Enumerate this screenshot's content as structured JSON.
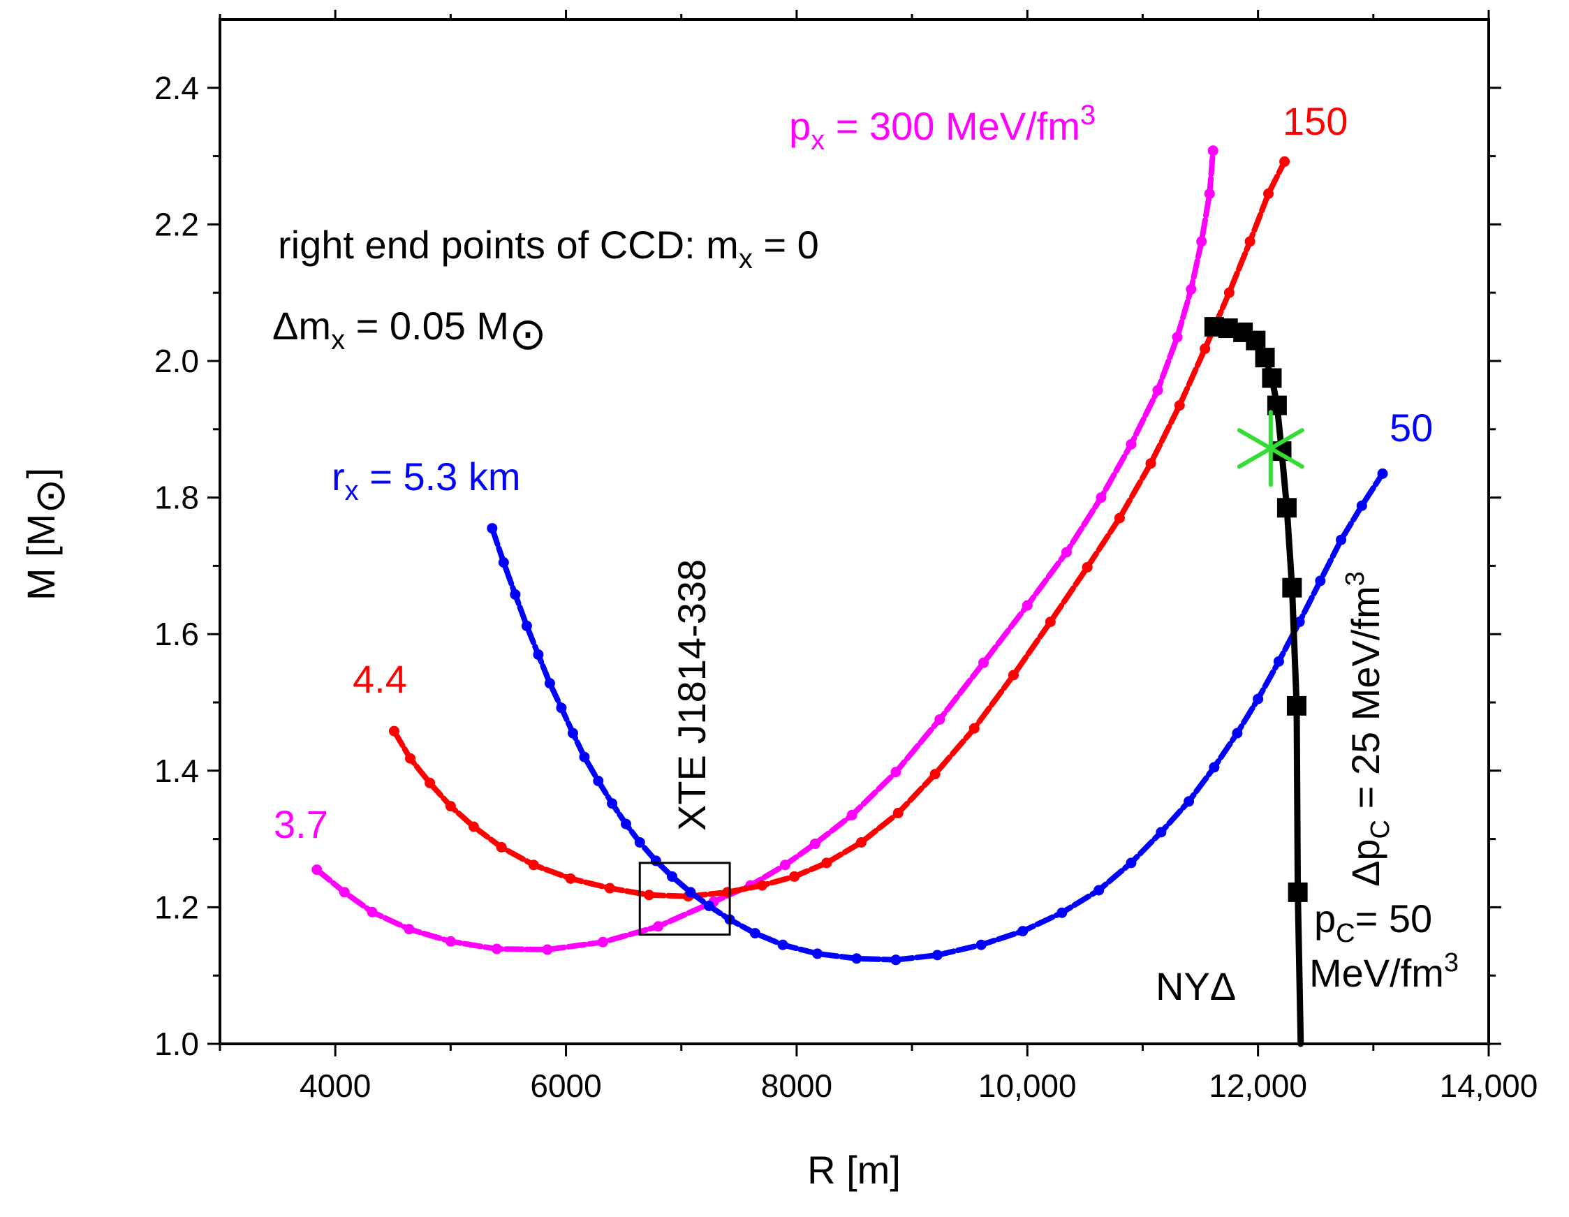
{
  "chart_data": {
    "type": "line",
    "xlabel": "R [m]",
    "ylabel": "M [M⊙]",
    "xlim": [
      3000,
      14000
    ],
    "ylim": [
      1.0,
      2.5
    ],
    "xticks": [
      {
        "value": 4000,
        "label": "4000"
      },
      {
        "value": 6000,
        "label": "6000"
      },
      {
        "value": 8000,
        "label": "8000"
      },
      {
        "value": 10000,
        "label": "10,000"
      },
      {
        "value": 12000,
        "label": "12,000"
      },
      {
        "value": 14000,
        "label": "14,000"
      }
    ],
    "yticks": [
      {
        "value": 1.0,
        "label": "1.0"
      },
      {
        "value": 1.2,
        "label": "1.2"
      },
      {
        "value": 1.4,
        "label": "1.4"
      },
      {
        "value": 1.6,
        "label": "1.6"
      },
      {
        "value": 1.8,
        "label": "1.8"
      },
      {
        "value": 2.0,
        "label": "2.0"
      },
      {
        "value": 2.2,
        "label": "2.2"
      },
      {
        "value": 2.4,
        "label": "2.4"
      }
    ],
    "grid": false,
    "series": [
      {
        "name": "magenta_lower",
        "color": "#ff00ff",
        "marker": "dot",
        "points": [
          [
            3840,
            1.255
          ],
          [
            4080,
            1.222
          ],
          [
            4320,
            1.193
          ],
          [
            4640,
            1.168
          ],
          [
            5000,
            1.15
          ],
          [
            5400,
            1.139
          ],
          [
            5840,
            1.138
          ],
          [
            6320,
            1.149
          ],
          [
            6800,
            1.172
          ],
          [
            7280,
            1.208
          ],
          [
            7600,
            1.232
          ],
          [
            7900,
            1.262
          ],
          [
            8160,
            1.293
          ]
        ]
      },
      {
        "name": "magenta_upper",
        "color": "#ff00ff",
        "marker": "dot",
        "points": [
          [
            8160,
            1.293
          ],
          [
            8480,
            1.335
          ],
          [
            8860,
            1.398
          ],
          [
            9240,
            1.475
          ],
          [
            9620,
            1.558
          ],
          [
            10000,
            1.642
          ],
          [
            10340,
            1.72
          ],
          [
            10640,
            1.8
          ],
          [
            10900,
            1.878
          ],
          [
            11130,
            1.957
          ],
          [
            11300,
            2.035
          ],
          [
            11420,
            2.105
          ],
          [
            11510,
            2.175
          ],
          [
            11580,
            2.245
          ],
          [
            11610,
            2.308
          ]
        ]
      },
      {
        "name": "red_lower",
        "color": "#ff0000",
        "marker": "dot",
        "points": [
          [
            4510,
            1.458
          ],
          [
            4650,
            1.418
          ],
          [
            4820,
            1.382
          ],
          [
            5000,
            1.348
          ],
          [
            5200,
            1.318
          ],
          [
            5440,
            1.288
          ],
          [
            5720,
            1.262
          ],
          [
            6040,
            1.242
          ],
          [
            6380,
            1.228
          ],
          [
            6720,
            1.218
          ],
          [
            7060,
            1.216
          ],
          [
            7400,
            1.222
          ],
          [
            7700,
            1.232
          ],
          [
            7980,
            1.245
          ],
          [
            8260,
            1.265
          ]
        ]
      },
      {
        "name": "red_upper",
        "color": "#ff0000",
        "marker": "dot",
        "points": [
          [
            8260,
            1.265
          ],
          [
            8560,
            1.295
          ],
          [
            8880,
            1.338
          ],
          [
            9200,
            1.395
          ],
          [
            9540,
            1.462
          ],
          [
            9880,
            1.54
          ],
          [
            10200,
            1.618
          ],
          [
            10520,
            1.698
          ],
          [
            10800,
            1.77
          ],
          [
            11070,
            1.85
          ],
          [
            11320,
            1.935
          ],
          [
            11540,
            2.018
          ],
          [
            11750,
            2.1
          ],
          [
            11930,
            2.175
          ],
          [
            12090,
            2.245
          ],
          [
            12230,
            2.292
          ]
        ]
      },
      {
        "name": "blue_left",
        "color": "#0000ff",
        "marker": "dot",
        "points": [
          [
            5360,
            1.755
          ],
          [
            5460,
            1.705
          ],
          [
            5560,
            1.658
          ],
          [
            5660,
            1.612
          ],
          [
            5760,
            1.57
          ],
          [
            5860,
            1.528
          ],
          [
            5960,
            1.492
          ],
          [
            6060,
            1.455
          ],
          [
            6160,
            1.42
          ],
          [
            6280,
            1.385
          ],
          [
            6400,
            1.352
          ],
          [
            6520,
            1.322
          ],
          [
            6640,
            1.295
          ],
          [
            6780,
            1.268
          ],
          [
            6920,
            1.245
          ],
          [
            7080,
            1.222
          ],
          [
            7240,
            1.202
          ],
          [
            7420,
            1.182
          ],
          [
            7640,
            1.162
          ],
          [
            7880,
            1.145
          ],
          [
            8180,
            1.132
          ],
          [
            8520,
            1.125
          ],
          [
            8860,
            1.123
          ]
        ]
      },
      {
        "name": "blue_right",
        "color": "#0000ff",
        "marker": "dot",
        "points": [
          [
            8860,
            1.123
          ],
          [
            9220,
            1.13
          ],
          [
            9600,
            1.145
          ],
          [
            9960,
            1.165
          ],
          [
            10300,
            1.192
          ],
          [
            10620,
            1.225
          ],
          [
            10900,
            1.265
          ],
          [
            11160,
            1.31
          ],
          [
            11400,
            1.355
          ],
          [
            11620,
            1.405
          ],
          [
            11820,
            1.455
          ],
          [
            12000,
            1.505
          ],
          [
            12180,
            1.56
          ],
          [
            12360,
            1.618
          ],
          [
            12540,
            1.678
          ],
          [
            12720,
            1.738
          ],
          [
            12900,
            1.788
          ],
          [
            13080,
            1.835
          ]
        ]
      },
      {
        "name": "NYΔ",
        "color": "#000000",
        "marker": "square",
        "points": [
          [
            12370,
            1.0
          ],
          [
            12345,
            1.222
          ],
          [
            12335,
            1.495
          ],
          [
            12295,
            1.668
          ],
          [
            12250,
            1.785
          ],
          [
            12205,
            1.868
          ],
          [
            12165,
            1.935
          ],
          [
            12120,
            1.975
          ],
          [
            12060,
            2.005
          ],
          [
            11980,
            2.03
          ],
          [
            11870,
            2.042
          ],
          [
            11740,
            2.048
          ],
          [
            11620,
            2.05
          ]
        ]
      }
    ],
    "star": {
      "R": 12110,
      "M": 1.872,
      "color": "#33dd33"
    },
    "box": {
      "label": "XTE J1814-338",
      "R_range": [
        6640,
        7420
      ],
      "M_range": [
        1.16,
        1.265
      ]
    },
    "annotations": {
      "right_end": "right end points of CCD: m",
      "right_end_sub": "x",
      "right_end_tail": " = 0",
      "delta": "Δm",
      "delta_sub": "x",
      "delta_tail": " = 0.05 M",
      "sun": "⊙",
      "px_main": "p",
      "px_sub": "x",
      "px_val": " = 300 MeV/fm",
      "px_sup": "3",
      "r150": "150",
      "r50": "50",
      "rx_main": "r",
      "rx_sub": "x",
      "rx_val": " = 5.3 km",
      "r44": "4.4",
      "r37": "3.7",
      "xte": "XTE J1814-338",
      "dpc_main": "Δp",
      "dpc_sub": "C",
      "dpc_val": " = 25  MeV/fm",
      "dpc_sup": "3",
      "pc_main": "p",
      "pc_sub": "C",
      "pc_val": "= 50",
      "mev_main": "MeV/fm",
      "mev_sup": "3",
      "nyd": "NYΔ"
    },
    "ylabel_main": "M [M",
    "ylabel_tail": "]"
  }
}
